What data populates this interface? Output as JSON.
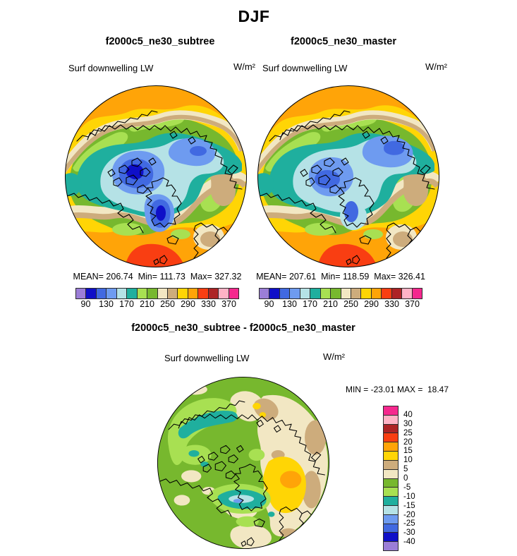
{
  "page_title": "DJF",
  "panels": [
    {
      "title": "f2000c5_ne30_subtree",
      "field_label": "Surf downwelling LW",
      "units": "W/m²",
      "stats_line": "MEAN= 206.74  Min= 111.73  Max= 327.32"
    },
    {
      "title": "f2000c5_ne30_master",
      "field_label": "Surf downwelling LW",
      "units": "W/m²",
      "stats_line": "MEAN= 207.61  Min= 118.59  Max= 326.41"
    }
  ],
  "diff_panel": {
    "title": "f2000c5_ne30_subtree - f2000c5_ne30_master",
    "field_label": "Surf downwelling LW",
    "units": "W/m²",
    "minmax_line": "MIN = -23.01 MAX =  18.47"
  },
  "colorbar": {
    "tick_labels": [
      "90",
      "130",
      "170",
      "210",
      "250",
      "290",
      "330",
      "370"
    ],
    "palette": [
      "#9B7ED7",
      "#0F0FC8",
      "#4169E1",
      "#6E9BF0",
      "#B5E2E6",
      "#1FAF9E",
      "#A8E052",
      "#77B82E",
      "#F2E7C3",
      "#CDAC7C",
      "#FFD505",
      "#FFA408",
      "#F93E12",
      "#AD2325",
      "#FFB3C6",
      "#F5288E"
    ],
    "border_color": "#2b2b2b"
  },
  "diff_colorbar": {
    "tick_labels": [
      "40",
      "30",
      "25",
      "20",
      "15",
      "10",
      "5",
      "0",
      "-5",
      "-10",
      "-15",
      "-20",
      "-25",
      "-30",
      "-40"
    ],
    "palette_top_to_bottom": [
      "#F5288E",
      "#FFB3C6",
      "#AD2325",
      "#F93E12",
      "#FFA408",
      "#FFD505",
      "#CDAC7C",
      "#F2E7C3",
      "#77B82E",
      "#A8E052",
      "#1FAF9E",
      "#B5E2E6",
      "#6E9BF0",
      "#4169E1",
      "#0F0FC8",
      "#9B7ED7"
    ]
  },
  "chart_data": [
    {
      "type": "heatmap",
      "subtype": "filled-contour polar stereographic map (Arctic)",
      "title": "f2000c5_ne30_subtree",
      "season": "DJF",
      "variable": "Surf downwelling LW",
      "units": "W/m^2",
      "mean": 206.74,
      "min": 111.73,
      "max": 327.32,
      "contour_levels": [
        90,
        110,
        130,
        150,
        170,
        190,
        210,
        230,
        250,
        270,
        290,
        310,
        330,
        350,
        370
      ],
      "labeled_ticks": [
        90,
        130,
        170,
        210,
        250,
        290,
        330,
        370
      ],
      "legend_position": "below"
    },
    {
      "type": "heatmap",
      "subtype": "filled-contour polar stereographic map (Arctic)",
      "title": "f2000c5_ne30_master",
      "season": "DJF",
      "variable": "Surf downwelling LW",
      "units": "W/m^2",
      "mean": 207.61,
      "min": 118.59,
      "max": 326.41,
      "contour_levels": [
        90,
        110,
        130,
        150,
        170,
        190,
        210,
        230,
        250,
        270,
        290,
        310,
        330,
        350,
        370
      ],
      "labeled_ticks": [
        90,
        130,
        170,
        210,
        250,
        290,
        330,
        370
      ],
      "legend_position": "below"
    },
    {
      "type": "heatmap",
      "subtype": "difference map (subtree minus master), polar stereographic (Arctic)",
      "title": "f2000c5_ne30_subtree - f2000c5_ne30_master",
      "season": "DJF",
      "variable": "Surf downwelling LW",
      "units": "W/m^2",
      "min": -23.01,
      "max": 18.47,
      "contour_levels": [
        -40,
        -30,
        -25,
        -20,
        -15,
        -10,
        -5,
        0,
        5,
        10,
        15,
        20,
        25,
        30,
        40
      ],
      "legend_position": "right"
    }
  ]
}
